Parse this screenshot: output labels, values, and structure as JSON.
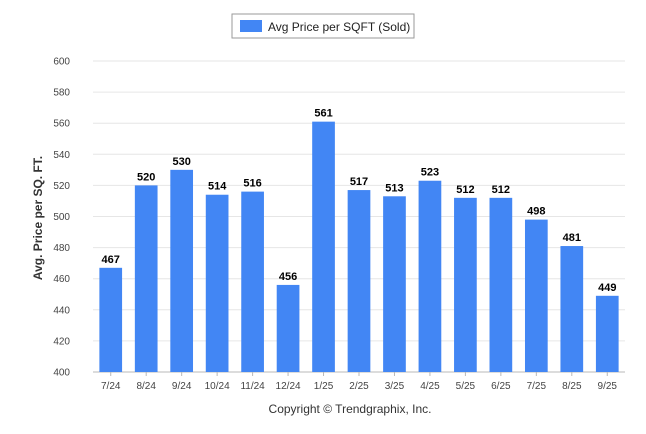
{
  "chart_data": {
    "type": "bar",
    "categories": [
      "7/24",
      "8/24",
      "9/24",
      "10/24",
      "11/24",
      "12/24",
      "1/25",
      "2/25",
      "3/25",
      "4/25",
      "5/25",
      "6/25",
      "7/25",
      "8/25",
      "9/25"
    ],
    "series": [
      {
        "name": "Avg Price per SQFT (Sold)",
        "values": [
          467,
          520,
          530,
          514,
          516,
          456,
          561,
          517,
          513,
          523,
          512,
          512,
          498,
          481,
          449
        ]
      }
    ],
    "data_labels": [
      "467",
      "520",
      "530",
      "514",
      "516",
      "456",
      "561",
      "517",
      "513",
      "523",
      "512",
      "512",
      "498",
      "481",
      "449"
    ],
    "ylabel": "Avg. Price per SQ. FT.",
    "xlabel": "",
    "ylim": [
      400,
      600
    ],
    "y_ticks": [
      "400",
      "420",
      "440",
      "460",
      "480",
      "500",
      "520",
      "540",
      "560",
      "580",
      "600"
    ],
    "grid": true,
    "legend_position": "top-center",
    "bar_color": "#4286f4"
  },
  "footer": {
    "copyright": "Copyright © Trendgraphix, Inc."
  }
}
